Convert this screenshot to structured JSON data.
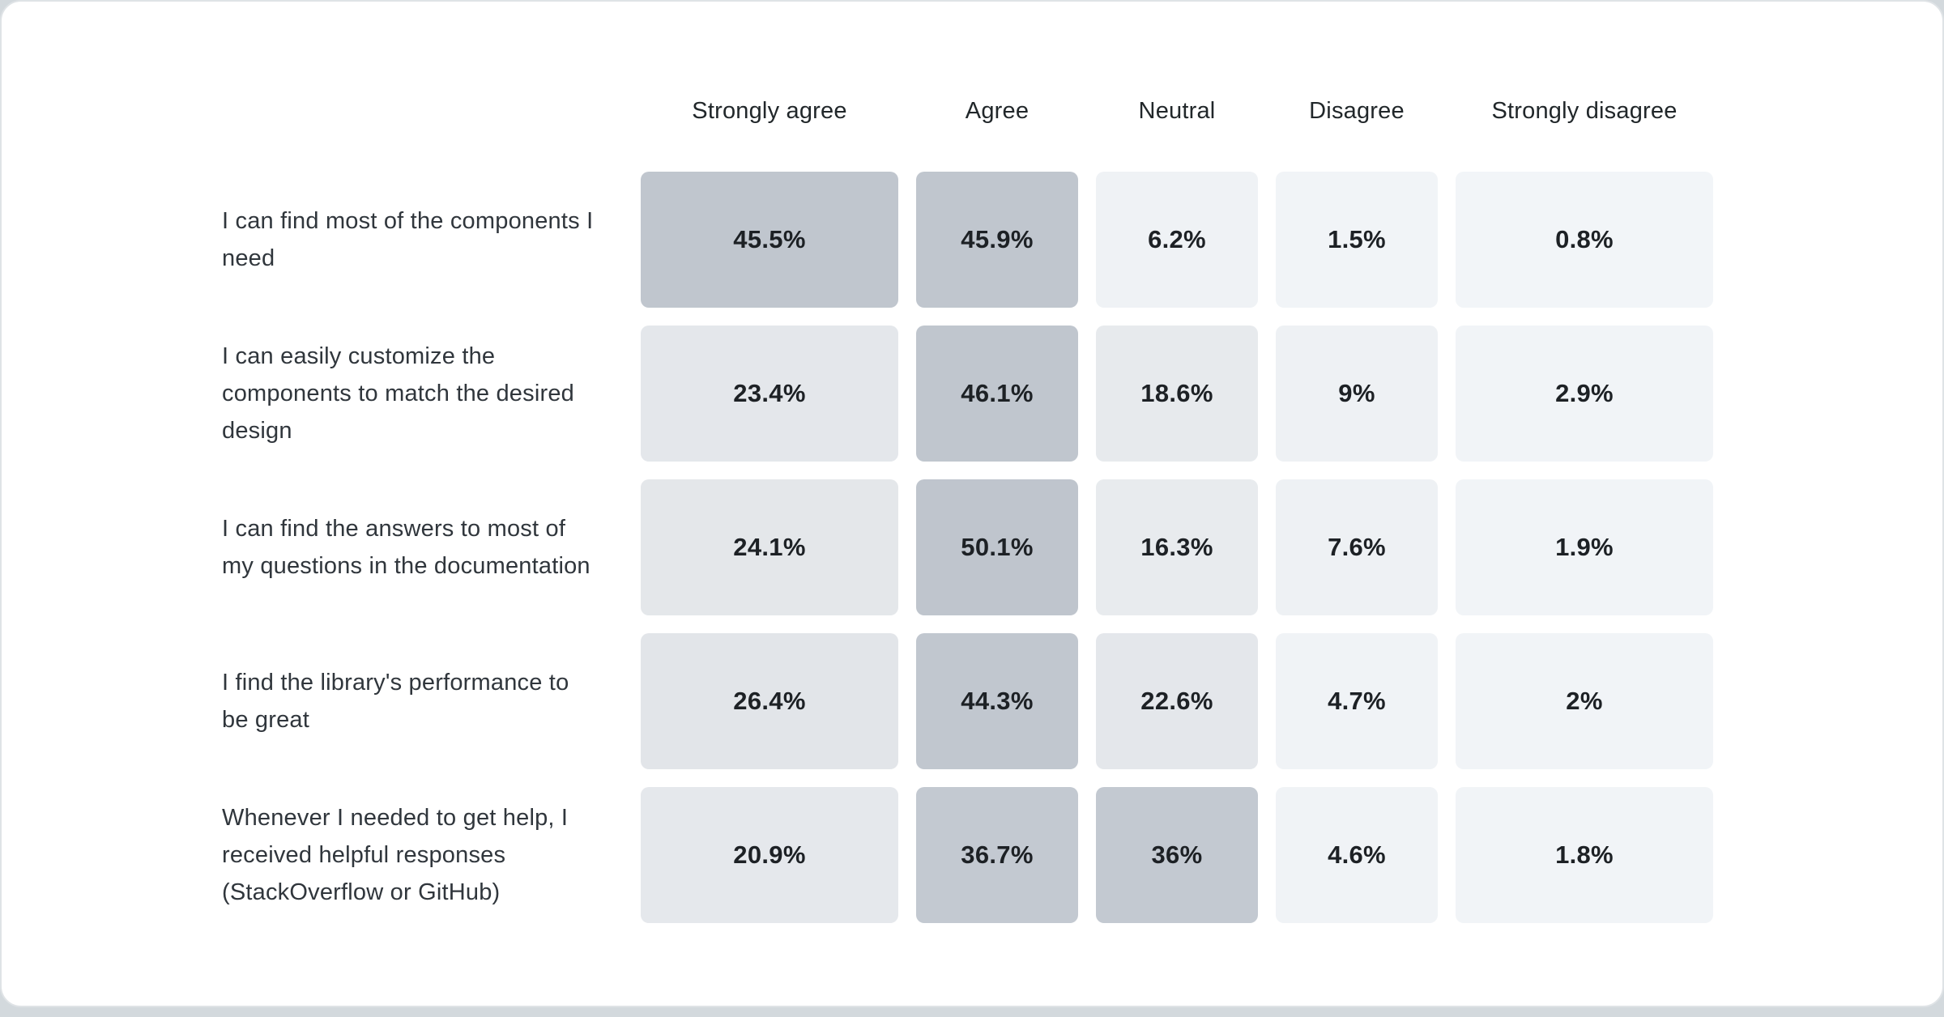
{
  "page": {
    "background_color": "#d3d9dd",
    "card_background": "#ffffff",
    "card_border_color": "#dfe3e6"
  },
  "chart_data": {
    "type": "heatmap",
    "title": "",
    "columns": [
      "Strongly agree",
      "Agree",
      "Neutral",
      "Disagree",
      "Strongly disagree"
    ],
    "rows": [
      {
        "label": "I can find most of the components I need",
        "values": [
          45.5,
          45.9,
          6.2,
          1.5,
          0.8
        ],
        "display": [
          "45.5%",
          "45.9%",
          "6.2%",
          "1.5%",
          "0.8%"
        ]
      },
      {
        "label": "I can easily customize the components to match the desired design",
        "values": [
          23.4,
          46.1,
          18.6,
          9,
          2.9
        ],
        "display": [
          "23.4%",
          "46.1%",
          "18.6%",
          "9%",
          "2.9%"
        ]
      },
      {
        "label": "I can find the answers to most of my questions in the documentation",
        "values": [
          24.1,
          50.1,
          16.3,
          7.6,
          1.9
        ],
        "display": [
          "24.1%",
          "50.1%",
          "16.3%",
          "7.6%",
          "1.9%"
        ]
      },
      {
        "label": "I find the library's performance to be great",
        "values": [
          26.4,
          44.3,
          22.6,
          4.7,
          2
        ],
        "display": [
          "26.4%",
          "44.3%",
          "22.6%",
          "4.7%",
          "2%"
        ]
      },
      {
        "label": "Whenever I needed to get help, I received helpful responses (StackOverflow or GitHub)",
        "values": [
          20.9,
          36.7,
          36,
          4.6,
          1.8
        ],
        "display": [
          "20.9%",
          "36.7%",
          "36%",
          "4.6%",
          "1.8%"
        ]
      }
    ],
    "color_scale": {
      "stops": [
        [
          0,
          "#f2f5f8"
        ],
        [
          10,
          "#edf0f3"
        ],
        [
          16,
          "#e8ebee"
        ],
        [
          27,
          "#e2e5e9"
        ],
        [
          36,
          "#c3c9d1"
        ],
        [
          50,
          "#bfc5cd"
        ]
      ]
    },
    "header_text_color": "#21272a",
    "label_text_color": "#30363c",
    "value_text_color": "#1d2125",
    "legend": "none",
    "grid": false
  }
}
